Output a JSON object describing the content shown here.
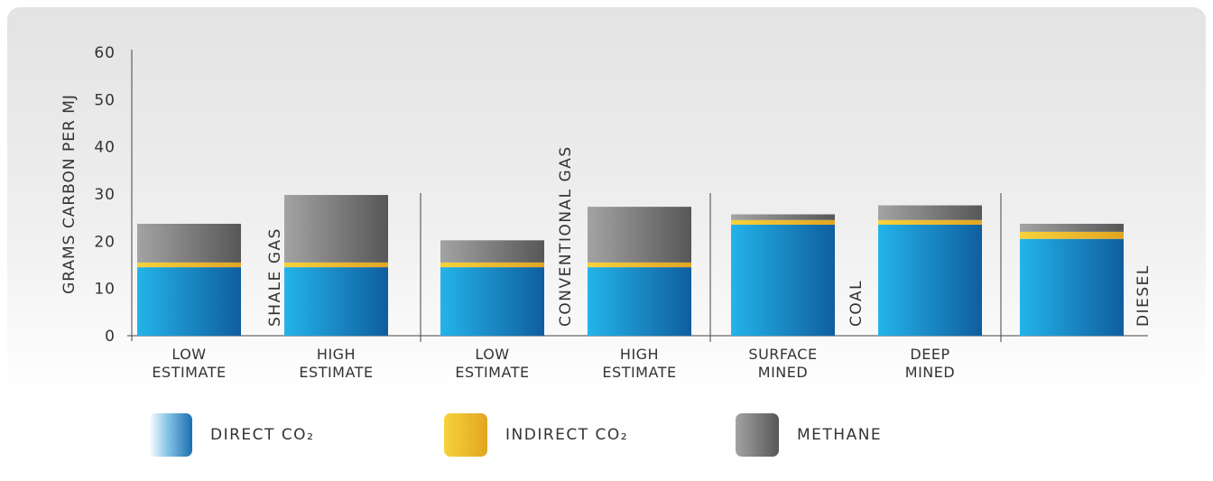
{
  "chart_data": {
    "type": "bar",
    "stacked": true,
    "ylabel": "GRAMS CARBON PER MJ",
    "ylim": [
      0,
      60
    ],
    "yticks": [
      "0",
      "10",
      "20",
      "30",
      "40",
      "50",
      "60"
    ],
    "grid": false,
    "legend_position": "bottom",
    "groups": [
      {
        "label": "SHALE GAS",
        "bars": [
          {
            "label_lines": [
              "LOW",
              "ESTIMATE"
            ],
            "direct_co2": 14.5,
            "indirect_co2": 1.0,
            "methane": 8.2
          },
          {
            "label_lines": [
              "HIGH",
              "ESTIMATE"
            ],
            "direct_co2": 14.5,
            "indirect_co2": 1.0,
            "methane": 14.3
          }
        ]
      },
      {
        "label": "CONVENTIONAL GAS",
        "bars": [
          {
            "label_lines": [
              "LOW",
              "ESTIMATE"
            ],
            "direct_co2": 14.5,
            "indirect_co2": 1.0,
            "methane": 4.7
          },
          {
            "label_lines": [
              "HIGH",
              "ESTIMATE"
            ],
            "direct_co2": 14.5,
            "indirect_co2": 1.0,
            "methane": 11.8
          }
        ]
      },
      {
        "label": "COAL",
        "bars": [
          {
            "label_lines": [
              "SURFACE",
              "MINED"
            ],
            "direct_co2": 23.5,
            "indirect_co2": 1.0,
            "methane": 1.2
          },
          {
            "label_lines": [
              "DEEP",
              "MINED"
            ],
            "direct_co2": 23.5,
            "indirect_co2": 1.0,
            "methane": 3.1
          }
        ]
      },
      {
        "label": "DIESEL",
        "bars": [
          {
            "label_lines": [],
            "direct_co2": 20.5,
            "indirect_co2": 1.5,
            "methane": 1.7
          }
        ]
      }
    ],
    "series": [
      {
        "key": "direct_co2",
        "name": "DIRECT CO₂"
      },
      {
        "key": "indirect_co2",
        "name": "INDIRECT CO₂"
      },
      {
        "key": "methane",
        "name": "METHANE"
      }
    ],
    "colors": {
      "direct_co2": [
        "#24b3ea",
        "#0f5e9e"
      ],
      "indirect_co2": [
        "#f6d23a",
        "#e2a522"
      ],
      "methane": [
        "#a3a3a3",
        "#575757"
      ],
      "legend_direct_co2": [
        "#ffffff",
        "#1a6fb0"
      ],
      "legend_indirect_co2": [
        "#f6d23a",
        "#e2a522"
      ],
      "legend_methane": [
        "#a3a3a3",
        "#575757"
      ]
    }
  },
  "legend": [
    {
      "label": "DIRECT CO₂"
    },
    {
      "label": "INDIRECT CO₂"
    },
    {
      "label": "METHANE"
    }
  ]
}
